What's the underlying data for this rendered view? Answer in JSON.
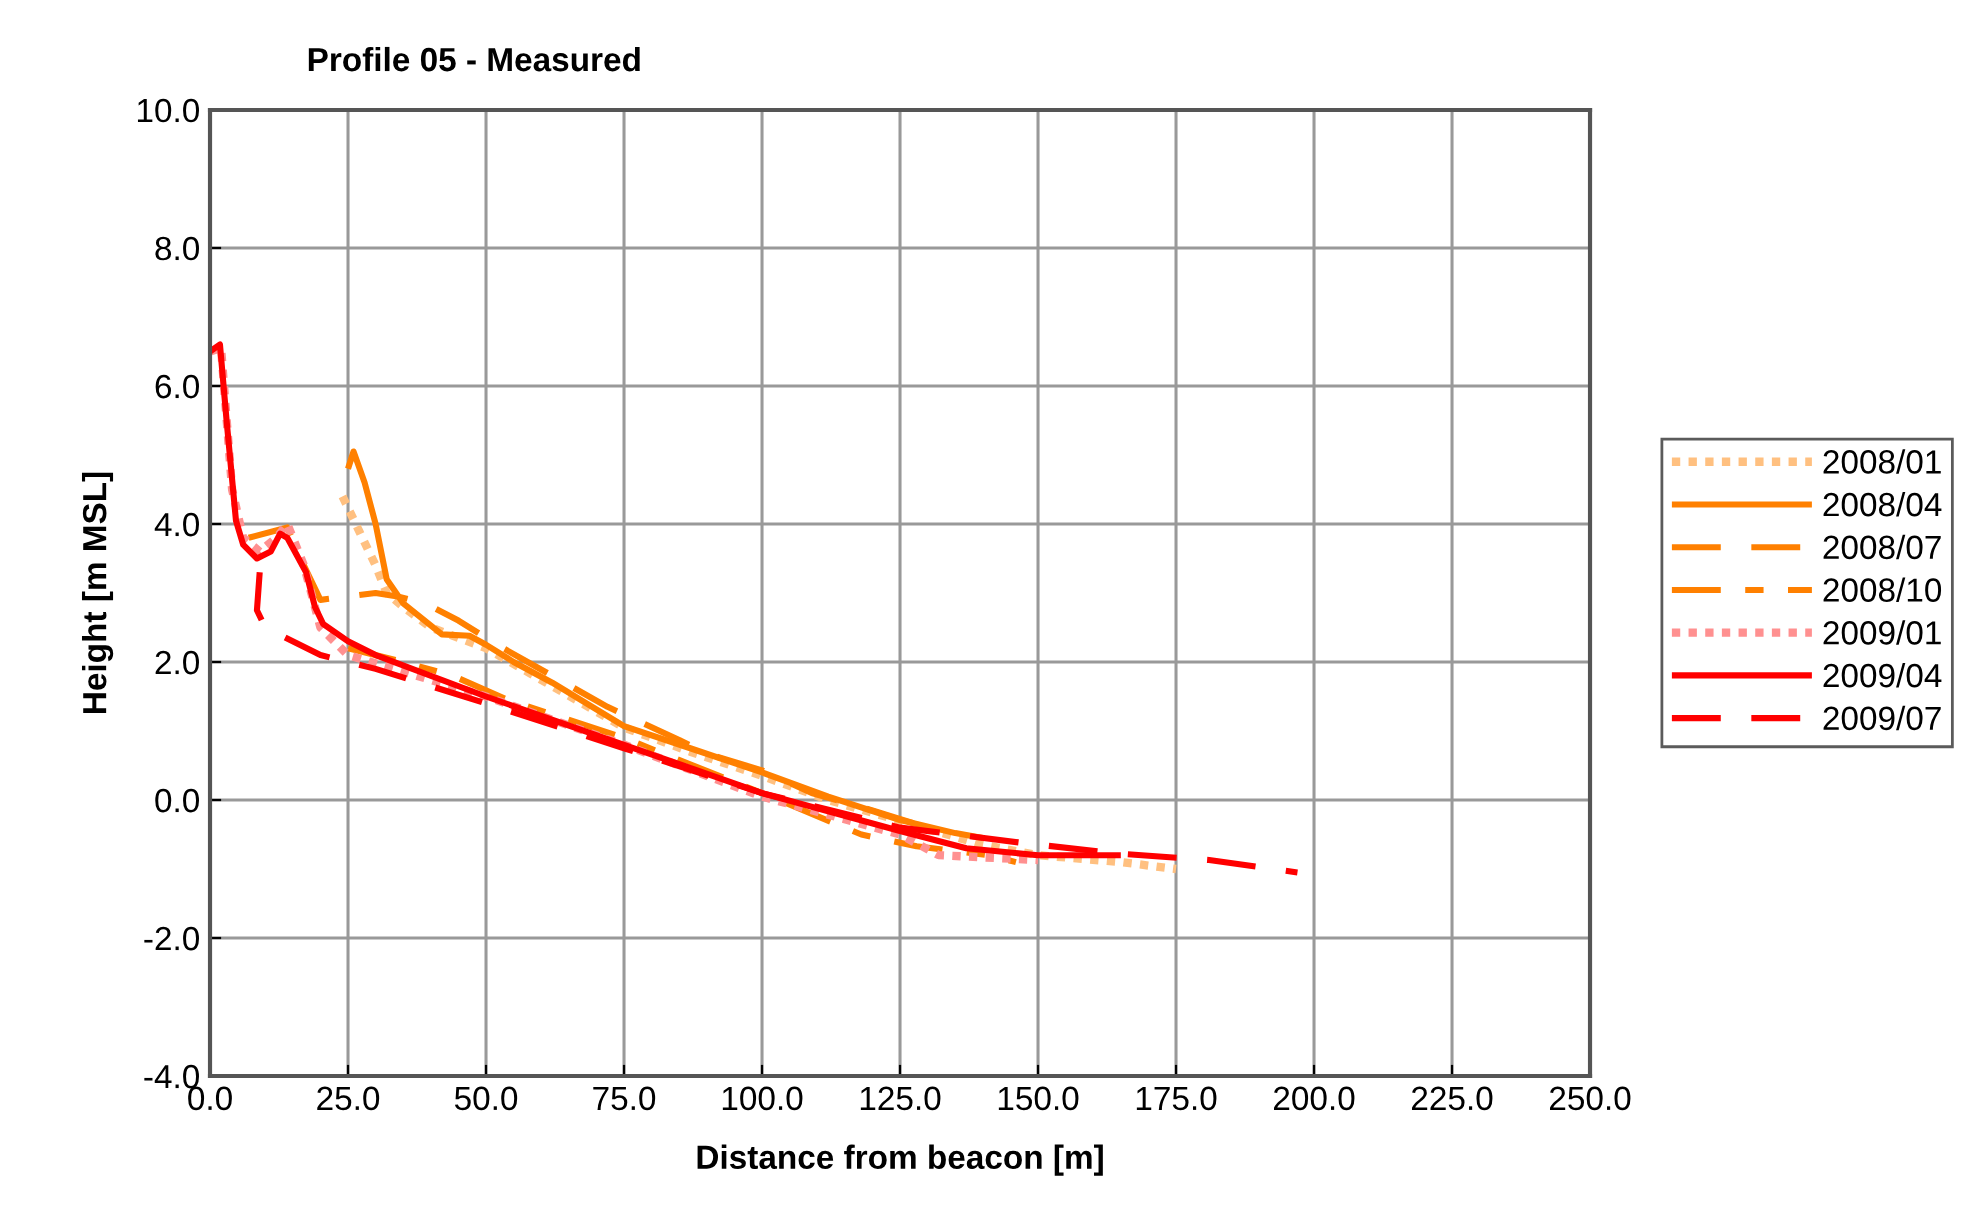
{
  "chart_data": {
    "type": "line",
    "title": "Profile 05 - Measured",
    "xlabel": "Distance from beacon [m]",
    "ylabel": "Height [m MSL]",
    "xlim": [
      0,
      250
    ],
    "xticks": [
      {
        "value": 0,
        "label": "0.0"
      },
      {
        "value": 25,
        "label": "25.0"
      },
      {
        "value": 50,
        "label": "50.0"
      },
      {
        "value": 75,
        "label": "75.0"
      },
      {
        "value": 100,
        "label": "100.0"
      },
      {
        "value": 125,
        "label": "125.0"
      },
      {
        "value": 150,
        "label": "150.0"
      },
      {
        "value": 175,
        "label": "175.0"
      },
      {
        "value": 200,
        "label": "200.0"
      },
      {
        "value": 225,
        "label": "225.0"
      },
      {
        "value": 250,
        "label": "250.0"
      }
    ],
    "ylim": [
      -4,
      10
    ],
    "yticks": [
      {
        "value": -4,
        "label": "-4.0"
      },
      {
        "value": -2,
        "label": "-2.0"
      },
      {
        "value": 0,
        "label": "0.0"
      },
      {
        "value": 2,
        "label": "2.0"
      },
      {
        "value": 4,
        "label": "4.0"
      },
      {
        "value": 6,
        "label": "6.0"
      },
      {
        "value": 8,
        "label": "8.0"
      },
      {
        "value": 10,
        "label": "10.0"
      }
    ],
    "grid": true,
    "legend": "right",
    "marker": "none",
    "series": [
      {
        "name": "2008/01",
        "color": "#ffc080",
        "line_style": "dotted",
        "x": [
          24,
          27,
          30,
          32,
          35,
          40,
          50,
          62,
          75,
          87,
          100,
          112,
          125,
          140,
          150,
          165,
          175
        ],
        "values": [
          4.4,
          3.9,
          3.4,
          3.0,
          2.8,
          2.5,
          2.2,
          1.65,
          1.05,
          0.7,
          0.35,
          0.0,
          -0.3,
          -0.65,
          -0.8,
          -0.9,
          -1.0
        ]
      },
      {
        "name": "2008/04",
        "color": "#ff8000",
        "line_style": "solid",
        "x": [
          25,
          26,
          28,
          30,
          32,
          35,
          42,
          47,
          50,
          55,
          62,
          75,
          87,
          100,
          112,
          125,
          135,
          140
        ],
        "values": [
          4.8,
          5.05,
          4.6,
          4.0,
          3.2,
          2.85,
          2.4,
          2.38,
          2.25,
          2.0,
          1.7,
          1.07,
          0.75,
          0.4,
          0.05,
          -0.29,
          -0.48,
          -0.55
        ]
      },
      {
        "name": "2008/07",
        "color": "#ff8000",
        "line_style": "dashed",
        "x": [
          7,
          14,
          17,
          20,
          30,
          34,
          39,
          45,
          52,
          62,
          72,
          85,
          90,
          100,
          109,
          120,
          130
        ],
        "values": [
          3.8,
          3.95,
          3.4,
          2.9,
          3.0,
          2.95,
          2.85,
          2.6,
          2.25,
          1.8,
          1.35,
          0.87,
          0.67,
          0.43,
          0.1,
          -0.15,
          -0.4
        ]
      },
      {
        "name": "2008/10",
        "color": "#ff8000",
        "line_style": "dashdot",
        "x": [
          25,
          35,
          44,
          54,
          75,
          100,
          118,
          128,
          141,
          146
        ],
        "values": [
          2.2,
          2.0,
          1.8,
          1.45,
          0.9,
          0.1,
          -0.5,
          -0.67,
          -0.8,
          -0.9
        ]
      },
      {
        "name": "2009/01",
        "color": "#ff9090",
        "line_style": "dotted",
        "x": [
          0,
          2,
          4,
          6,
          9,
          12,
          14,
          17,
          20,
          25,
          50,
          75,
          100,
          125,
          132,
          150
        ],
        "values": [
          6.5,
          6.55,
          4.5,
          3.8,
          3.6,
          3.8,
          4.0,
          3.4,
          2.5,
          2.1,
          1.5,
          0.8,
          0.05,
          -0.5,
          -0.8,
          -0.87
        ]
      },
      {
        "name": "2009/04",
        "color": "#ff0000",
        "line_style": "solid",
        "x": [
          0,
          1.8,
          3,
          4.7,
          6,
          8.5,
          11,
          12.7,
          14,
          17.4,
          19,
          20.5,
          25,
          30,
          50,
          75,
          100,
          125,
          137,
          150,
          165
        ],
        "values": [
          6.5,
          6.6,
          5.5,
          4.05,
          3.7,
          3.5,
          3.6,
          3.86,
          3.8,
          3.3,
          2.8,
          2.55,
          2.3,
          2.1,
          1.5,
          0.8,
          0.1,
          -0.45,
          -0.7,
          -0.8,
          -0.8
        ]
      },
      {
        "name": "2009/07",
        "color": "#ff0000",
        "line_style": "dashed",
        "x": [
          9,
          8.5,
          10,
          20,
          30,
          50,
          75,
          100,
          125,
          135,
          148,
          165,
          181,
          197
        ],
        "values": [
          3.3,
          2.75,
          2.5,
          2.1,
          1.9,
          1.4,
          0.75,
          0.1,
          -0.4,
          -0.5,
          -0.63,
          -0.78,
          -0.87,
          -1.05
        ]
      }
    ]
  }
}
